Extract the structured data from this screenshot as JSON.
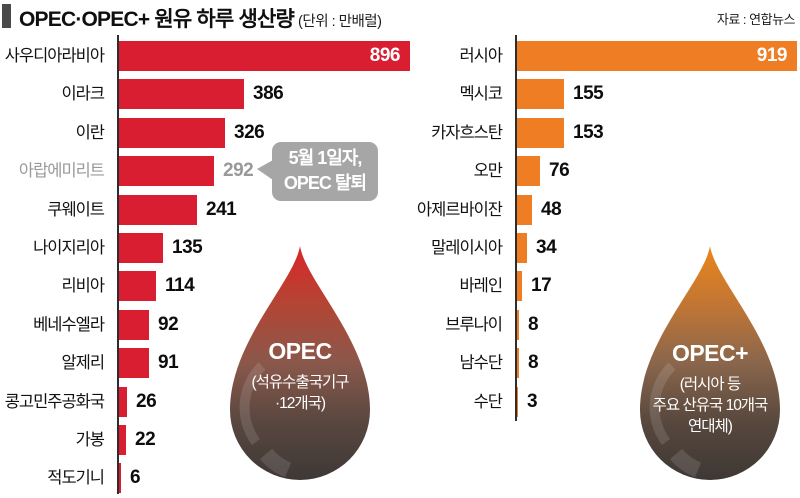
{
  "header": {
    "title": "OPEC·OPEC+ 원유 하루 생산량",
    "unit": "(단위 : 만배럴)",
    "source": "자료 : 연합뉴스"
  },
  "annotation": {
    "line1": "5월 1일자,",
    "line2": "OPEC 탈퇴"
  },
  "drops": {
    "opec": {
      "title": "OPEC",
      "lines": [
        "(석유수출국기구",
        "·12개국)"
      ]
    },
    "opec_plus": {
      "title": "OPEC+",
      "lines": [
        "(러시아 등",
        "주요 산유국 10개국",
        "연대체)"
      ]
    }
  },
  "colors": {
    "opec_bar": "#d91e32",
    "opec_plus_bar": "#ee7d23",
    "muted_gray": "#999999",
    "callout_bg": "#a6a6a6",
    "axis": "#2d2d2d",
    "header_square": "#4a4a4a"
  },
  "chart_data": [
    {
      "id": "opec",
      "type": "bar",
      "orientation": "horizontal",
      "group": "OPEC (석유수출국기구 ·12개국)",
      "bar_color": "#d91e32",
      "categories": [
        "사우디아라비아",
        "이라크",
        "이란",
        "아랍에미리트",
        "쿠웨이트",
        "나이지리아",
        "리비아",
        "베네수엘라",
        "알제리",
        "콩고민주공화국",
        "가봉",
        "적도기니"
      ],
      "values": [
        896,
        386,
        326,
        292,
        241,
        135,
        114,
        92,
        91,
        26,
        22,
        6
      ],
      "inside_value_indices": [
        0
      ],
      "muted_indices": [
        3
      ],
      "xlim": [
        0,
        896
      ],
      "ylabel": "",
      "xlabel": "만배럴"
    },
    {
      "id": "opec-plus",
      "type": "bar",
      "orientation": "horizontal",
      "group": "OPEC+ (러시아 등 주요 산유국 10개국 연대체)",
      "bar_color": "#ee7d23",
      "categories": [
        "러시아",
        "멕시코",
        "카자흐스탄",
        "오만",
        "아제르바이잔",
        "말레이시아",
        "바레인",
        "브루나이",
        "남수단",
        "수단"
      ],
      "values": [
        919,
        155,
        153,
        76,
        48,
        34,
        17,
        8,
        8,
        3
      ],
      "inside_value_indices": [
        0
      ],
      "muted_indices": [],
      "xlim": [
        0,
        919
      ],
      "ylabel": "",
      "xlabel": "만배럴"
    }
  ]
}
